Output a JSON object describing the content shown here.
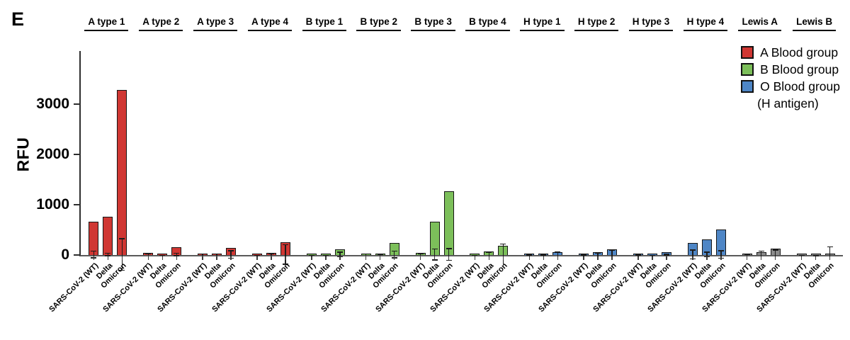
{
  "panel": {
    "letter": "E"
  },
  "chart_data": {
    "type": "bar",
    "title": "",
    "ylabel": "RFU",
    "ylim": [
      0,
      4050
    ],
    "yticks": [
      0,
      1000,
      2000,
      3000
    ],
    "grid": false,
    "legend_position": "top-right",
    "bar_x_labels": [
      "SARS-CoV-2 (WT)",
      "Delta",
      "Omicron"
    ],
    "groups": [
      {
        "header": "A type 1",
        "color": "#d03733",
        "values": [
          660,
          760,
          3280
        ],
        "errors": [
          70,
          25,
          310
        ]
      },
      {
        "header": "A type 2",
        "color": "#d03733",
        "values": [
          40,
          5,
          155
        ],
        "errors": [
          15,
          4,
          25
        ]
      },
      {
        "header": "A type 3",
        "color": "#d03733",
        "values": [
          30,
          35,
          140
        ],
        "errors": [
          10,
          10,
          75
        ]
      },
      {
        "header": "A type 4",
        "color": "#d03733",
        "values": [
          10,
          45,
          260
        ],
        "errors": [
          4,
          15,
          195
        ]
      },
      {
        "header": "B type 1",
        "color": "#7cbf5a",
        "values": [
          10,
          5,
          110
        ],
        "errors": [
          4,
          3,
          45
        ]
      },
      {
        "header": "B type 2",
        "color": "#7cbf5a",
        "values": [
          35,
          25,
          235
        ],
        "errors": [
          10,
          8,
          70
        ]
      },
      {
        "header": "B type 3",
        "color": "#7cbf5a",
        "values": [
          45,
          660,
          1270
        ],
        "errors": [
          15,
          110,
          115
        ]
      },
      {
        "header": "B type 4",
        "color": "#7cbf5a",
        "values": [
          10,
          70,
          185
        ],
        "errors": [
          4,
          45,
          210
        ]
      },
      {
        "header": "H type 1",
        "color": "#4e86c6",
        "values": [
          12,
          10,
          55
        ],
        "errors": [
          4,
          6,
          50
        ]
      },
      {
        "header": "H type 2",
        "color": "#4e86c6",
        "values": [
          12,
          50,
          115
        ],
        "errors": [
          4,
          22,
          85
        ]
      },
      {
        "header": "H type 3",
        "color": "#4e86c6",
        "values": [
          12,
          8,
          55
        ],
        "errors": [
          4,
          4,
          10
        ]
      },
      {
        "header": "H type 4",
        "color": "#4e86c6",
        "values": [
          245,
          315,
          500
        ],
        "errors": [
          85,
          45,
          75
        ]
      },
      {
        "header": "Lewis A",
        "color": "#8b8b8b",
        "values": [
          25,
          55,
          125
        ],
        "errors": [
          8,
          70,
          90
        ]
      },
      {
        "header": "Lewis B",
        "color": "#8b8b8b",
        "values": [
          8,
          4,
          10
        ],
        "errors": [
          4,
          3,
          170
        ]
      }
    ],
    "legend": [
      {
        "label": "A Blood group",
        "color": "#d03733"
      },
      {
        "label": "B Blood group",
        "color": "#7cbf5a"
      },
      {
        "label": "O Blood group",
        "color": "#4e86c6"
      },
      {
        "label": "(H antigen)",
        "color": null
      }
    ]
  }
}
